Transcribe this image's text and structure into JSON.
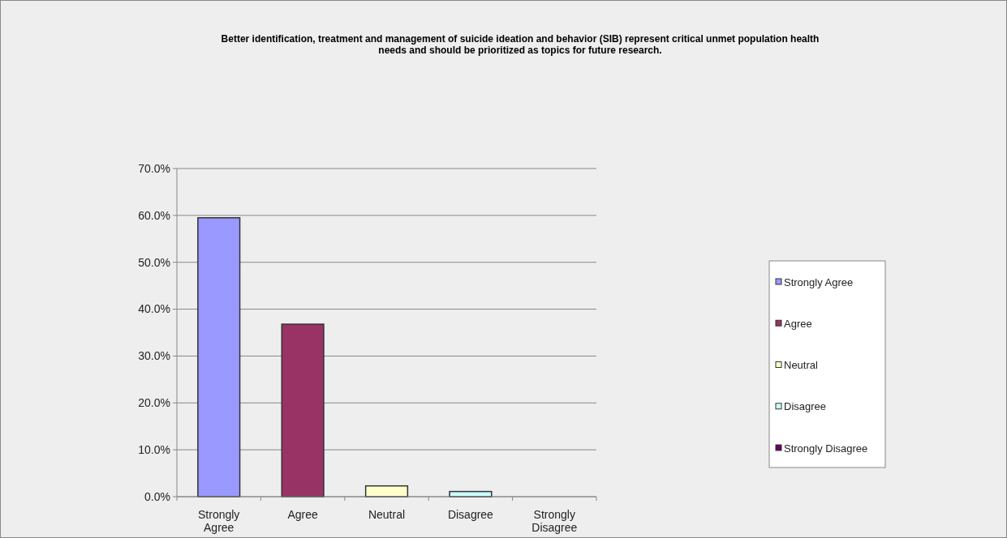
{
  "chart_data": {
    "type": "bar",
    "title": "Better identification, treatment and management of suicide ideation and behavior (SIB) represent critical unmet population health needs and should be prioritized as topics for future research.",
    "categories": [
      "Strongly Agree",
      "Agree",
      "Neutral",
      "Disagree",
      "Strongly Disagree"
    ],
    "stacked": true,
    "series": [
      {
        "name": "Strongly Agree",
        "color": "#9999ff",
        "values": [
          59.5,
          null,
          null,
          null,
          null
        ]
      },
      {
        "name": "Agree",
        "color": "#993366",
        "values": [
          null,
          36.8,
          null,
          null,
          null
        ]
      },
      {
        "name": "Neutral",
        "color": "#ffffcc",
        "values": [
          null,
          null,
          2.3,
          null,
          null
        ]
      },
      {
        "name": "Disagree",
        "color": "#ccffff",
        "values": [
          null,
          null,
          null,
          1.1,
          null
        ]
      },
      {
        "name": "Strongly Disagree",
        "color": "#660066",
        "values": [
          null,
          null,
          null,
          null,
          0
        ]
      }
    ],
    "ylim": [
      0,
      70
    ],
    "yticks": [
      {
        "value": 0,
        "label": "0.0%"
      },
      {
        "value": 10,
        "label": "10.0%"
      },
      {
        "value": 20,
        "label": "20.0%"
      },
      {
        "value": 30,
        "label": "30.0%"
      },
      {
        "value": 40,
        "label": "40.0%"
      },
      {
        "value": 50,
        "label": "50.0%"
      },
      {
        "value": 60,
        "label": "60.0%"
      },
      {
        "value": 70,
        "label": "70.0%"
      }
    ],
    "grid": "y",
    "legend": "right"
  }
}
